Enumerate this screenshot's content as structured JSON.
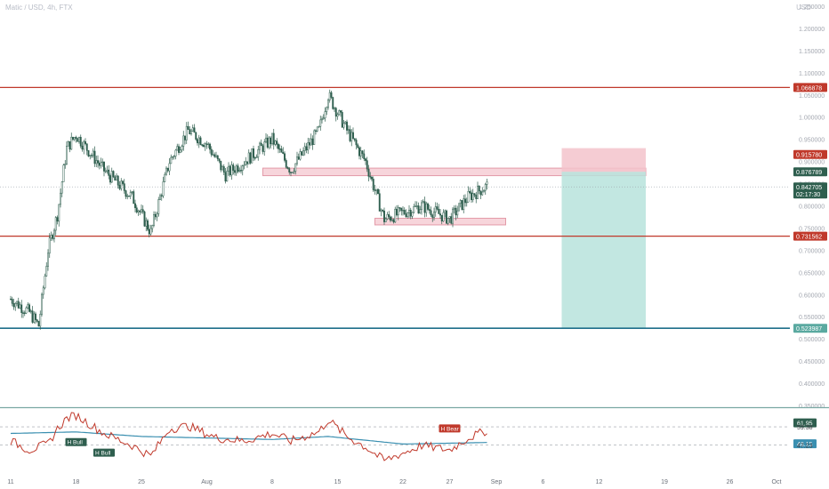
{
  "header": {
    "title": "Matic / USD, 4h, FTX",
    "currency": "USD"
  },
  "colors": {
    "background": "#ffffff",
    "candle_up": "#2e5e4e",
    "candle_down": "#2e5e4e",
    "resistance_line": "#c0392b",
    "support_line": "#1f6f8b",
    "zone_fill": "#f4c7cf",
    "zone_stroke": "#e39aa8",
    "stop_fill": "#f3c3cb",
    "target_fill": "#b7e3dc",
    "rsi_line": "#c0392b",
    "rsi_ma": "#3a8fb0",
    "label_red": "#c0392b",
    "label_dark_green": "#2e5e4e",
    "label_teal": "#5aa9a0"
  },
  "chart_data": [
    {
      "type": "line",
      "chart_style": "candlestick",
      "title": "Matic / USD, 4h, FTX",
      "y_scale": "linear",
      "ylim": [
        0.35,
        1.25
      ],
      "yticks": [
        "1.250000",
        "1.200000",
        "1.150000",
        "1.100000",
        "1.050000",
        "1.000000",
        "0.950000",
        "0.900000",
        "0.850000",
        "0.800000",
        "0.750000",
        "0.700000",
        "0.650000",
        "0.600000",
        "0.550000",
        "0.500000",
        "0.450000",
        "0.400000",
        "0.350000"
      ],
      "xtick_labels": [
        "11",
        "18",
        "25",
        "Aug",
        "8",
        "15",
        "22",
        "27",
        "Sep",
        "6",
        "12",
        "19",
        "26",
        "Oct"
      ],
      "price_path": [
        {
          "x": "Jul 11",
          "y": 0.59
        },
        {
          "x": "Jul 13",
          "y": 0.56
        },
        {
          "x": "Jul 14",
          "y": 0.53
        },
        {
          "x": "Jul 15",
          "y": 0.7
        },
        {
          "x": "Jul 16",
          "y": 0.78
        },
        {
          "x": "Jul 17",
          "y": 0.93
        },
        {
          "x": "Jul 18",
          "y": 0.96
        },
        {
          "x": "Jul 21",
          "y": 0.88
        },
        {
          "x": "Jul 24",
          "y": 0.82
        },
        {
          "x": "Jul 26",
          "y": 0.74
        },
        {
          "x": "Jul 28",
          "y": 0.9
        },
        {
          "x": "Jul 30",
          "y": 0.97
        },
        {
          "x": "Aug 1",
          "y": 0.94
        },
        {
          "x": "Aug 3",
          "y": 0.87
        },
        {
          "x": "Aug 5",
          "y": 0.9
        },
        {
          "x": "Aug 8",
          "y": 0.95
        },
        {
          "x": "Aug 10",
          "y": 0.88
        },
        {
          "x": "Aug 13",
          "y": 0.97
        },
        {
          "x": "Aug 14",
          "y": 1.05
        },
        {
          "x": "Aug 16",
          "y": 0.97
        },
        {
          "x": "Aug 18",
          "y": 0.9
        },
        {
          "x": "Aug 20",
          "y": 0.77
        },
        {
          "x": "Aug 24",
          "y": 0.8
        },
        {
          "x": "Aug 27",
          "y": 0.77
        },
        {
          "x": "Aug 29",
          "y": 0.82
        },
        {
          "x": "Aug 31",
          "y": 0.845
        }
      ],
      "horizontal_levels": [
        {
          "label": "1.066878",
          "value": 1.066878,
          "kind": "resistance"
        },
        {
          "label": "0.731562",
          "value": 0.731562,
          "kind": "support"
        },
        {
          "label": "0.523987",
          "value": 0.523987,
          "kind": "support"
        }
      ],
      "zones": [
        {
          "from_x": "Aug 7",
          "to_x": "Sep 17",
          "y_low": 0.868,
          "y_high": 0.885
        },
        {
          "from_x": "Aug 19",
          "to_x": "Sep 2",
          "y_low": 0.757,
          "y_high": 0.772
        }
      ],
      "position": {
        "type": "short",
        "from_x": "Sep 8",
        "to_x": "Sep 17",
        "entry": 0.876789,
        "stop": 0.93,
        "target": 0.523987
      },
      "price_labels": [
        {
          "text": "1.066878",
          "value": 1.066878,
          "color": "#c0392b"
        },
        {
          "text": "0.915780",
          "value": 0.91578,
          "color": "#c0392b"
        },
        {
          "text": "0.876789",
          "value": 0.876789,
          "color": "#2e5e4e"
        },
        {
          "text": "0.842705",
          "value": 0.842705,
          "color": "#2e5e4e",
          "sub": "02:17:30"
        },
        {
          "text": "0.731562",
          "value": 0.731562,
          "color": "#c0392b"
        },
        {
          "text": "0.523987",
          "value": 0.523987,
          "color": "#5aa9a0"
        }
      ]
    },
    {
      "type": "line",
      "title": "RSI",
      "ylim": [
        30,
        70
      ],
      "series": [
        {
          "kind": "rsi",
          "points": [
            {
              "x": "Jul 11",
              "y": 50
            },
            {
              "x": "Jul 13",
              "y": 44
            },
            {
              "x": "Jul 15",
              "y": 48
            },
            {
              "x": "Jul 16",
              "y": 58
            },
            {
              "x": "Jul 17",
              "y": 65
            },
            {
              "x": "Jul 18",
              "y": 67
            },
            {
              "x": "Jul 21",
              "y": 55
            },
            {
              "x": "Jul 24",
              "y": 47
            },
            {
              "x": "Jul 26",
              "y": 40
            },
            {
              "x": "Jul 28",
              "y": 58
            },
            {
              "x": "Jul 30",
              "y": 60
            },
            {
              "x": "Aug 2",
              "y": 52
            },
            {
              "x": "Aug 5",
              "y": 50
            },
            {
              "x": "Aug 8",
              "y": 55
            },
            {
              "x": "Aug 10",
              "y": 50
            },
            {
              "x": "Aug 13",
              "y": 56
            },
            {
              "x": "Aug 14",
              "y": 64
            },
            {
              "x": "Aug 16",
              "y": 53
            },
            {
              "x": "Aug 18",
              "y": 46
            },
            {
              "x": "Aug 20",
              "y": 37
            },
            {
              "x": "Aug 24",
              "y": 47
            },
            {
              "x": "Aug 27",
              "y": 44
            },
            {
              "x": "Aug 29",
              "y": 52
            },
            {
              "x": "Aug 31",
              "y": 57
            }
          ]
        },
        {
          "kind": "rsi_ma",
          "points": [
            {
              "x": "Jul 11",
              "y": 55
            },
            {
              "x": "Jul 18",
              "y": 56
            },
            {
              "x": "Jul 25",
              "y": 53
            },
            {
              "x": "Aug 1",
              "y": 52
            },
            {
              "x": "Aug 8",
              "y": 51
            },
            {
              "x": "Aug 14",
              "y": 53
            },
            {
              "x": "Aug 22",
              "y": 48
            },
            {
              "x": "Aug 31",
              "y": 49
            }
          ]
        }
      ],
      "levels": [
        {
          "value": 59.38,
          "label": "59.38"
        },
        {
          "value": 47.23,
          "label": "47.23"
        }
      ],
      "badges": [
        {
          "text": "H Bull",
          "x": "Jul 18",
          "y": 49
        },
        {
          "text": "H Bull",
          "x": "Jul 21",
          "y": 42
        },
        {
          "text": "H Bear",
          "x": "Aug 27",
          "y": 58
        }
      ],
      "axis_labels": [
        {
          "text": "61.95",
          "value": 61.95,
          "color": "#2e5e4e"
        },
        {
          "text": "59.38",
          "value": 59.38,
          "color": null
        },
        {
          "text": "48.15",
          "value": 48.15,
          "color": "#3a8fb0"
        },
        {
          "text": "47.23",
          "value": 47.23,
          "color": null
        }
      ]
    }
  ]
}
